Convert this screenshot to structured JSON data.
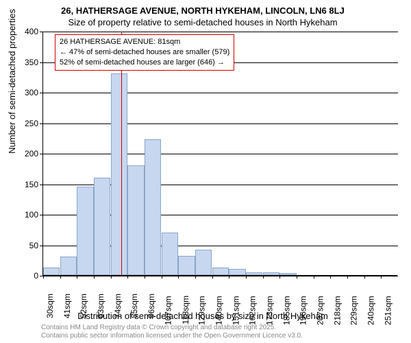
{
  "title_line1": "26, HATHERSAGE AVENUE, NORTH HYKEHAM, LINCOLN, LN6 8LJ",
  "title_line2": "Size of property relative to semi-detached houses in North Hykeham",
  "ylabel": "Number of semi-detached properties",
  "xlabel": "Distribution of semi-detached houses by size in North Hykeham",
  "chart": {
    "type": "histogram",
    "ylim": [
      0,
      400
    ],
    "ytick_step": 50,
    "yticks": [
      0,
      50,
      100,
      150,
      200,
      250,
      300,
      350,
      400
    ],
    "x_categories": [
      "30sqm",
      "41sqm",
      "52sqm",
      "63sqm",
      "74sqm",
      "85sqm",
      "96sqm",
      "107sqm",
      "118sqm",
      "129sqm",
      "140sqm",
      "151sqm",
      "162sqm",
      "173sqm",
      "185sqm",
      "196sqm",
      "207sqm",
      "218sqm",
      "229sqm",
      "240sqm",
      "251sqm"
    ],
    "values": [
      12,
      30,
      145,
      160,
      330,
      180,
      223,
      70,
      32,
      42,
      12,
      10,
      5,
      4,
      3,
      0,
      0,
      0,
      0,
      0,
      0
    ],
    "bar_fill": "#c7d7ef",
    "bar_stroke": "#8ba5c9",
    "background_color": "#ffffff",
    "reference_line": {
      "x_position_sqm": 81,
      "color": "#cc0000"
    },
    "annotation": {
      "line1": "26 HATHERSAGE AVENUE: 81sqm",
      "line2": "← 47% of semi-detached houses are smaller (579)",
      "line3": "52% of semi-detached houses are larger (646) →",
      "border_color": "#cc0000"
    }
  },
  "footer_line1": "Contains HM Land Registry data © Crown copyright and database right 2025.",
  "footer_line2": "Contains public sector information licensed under the Open Government Licence v3.0."
}
